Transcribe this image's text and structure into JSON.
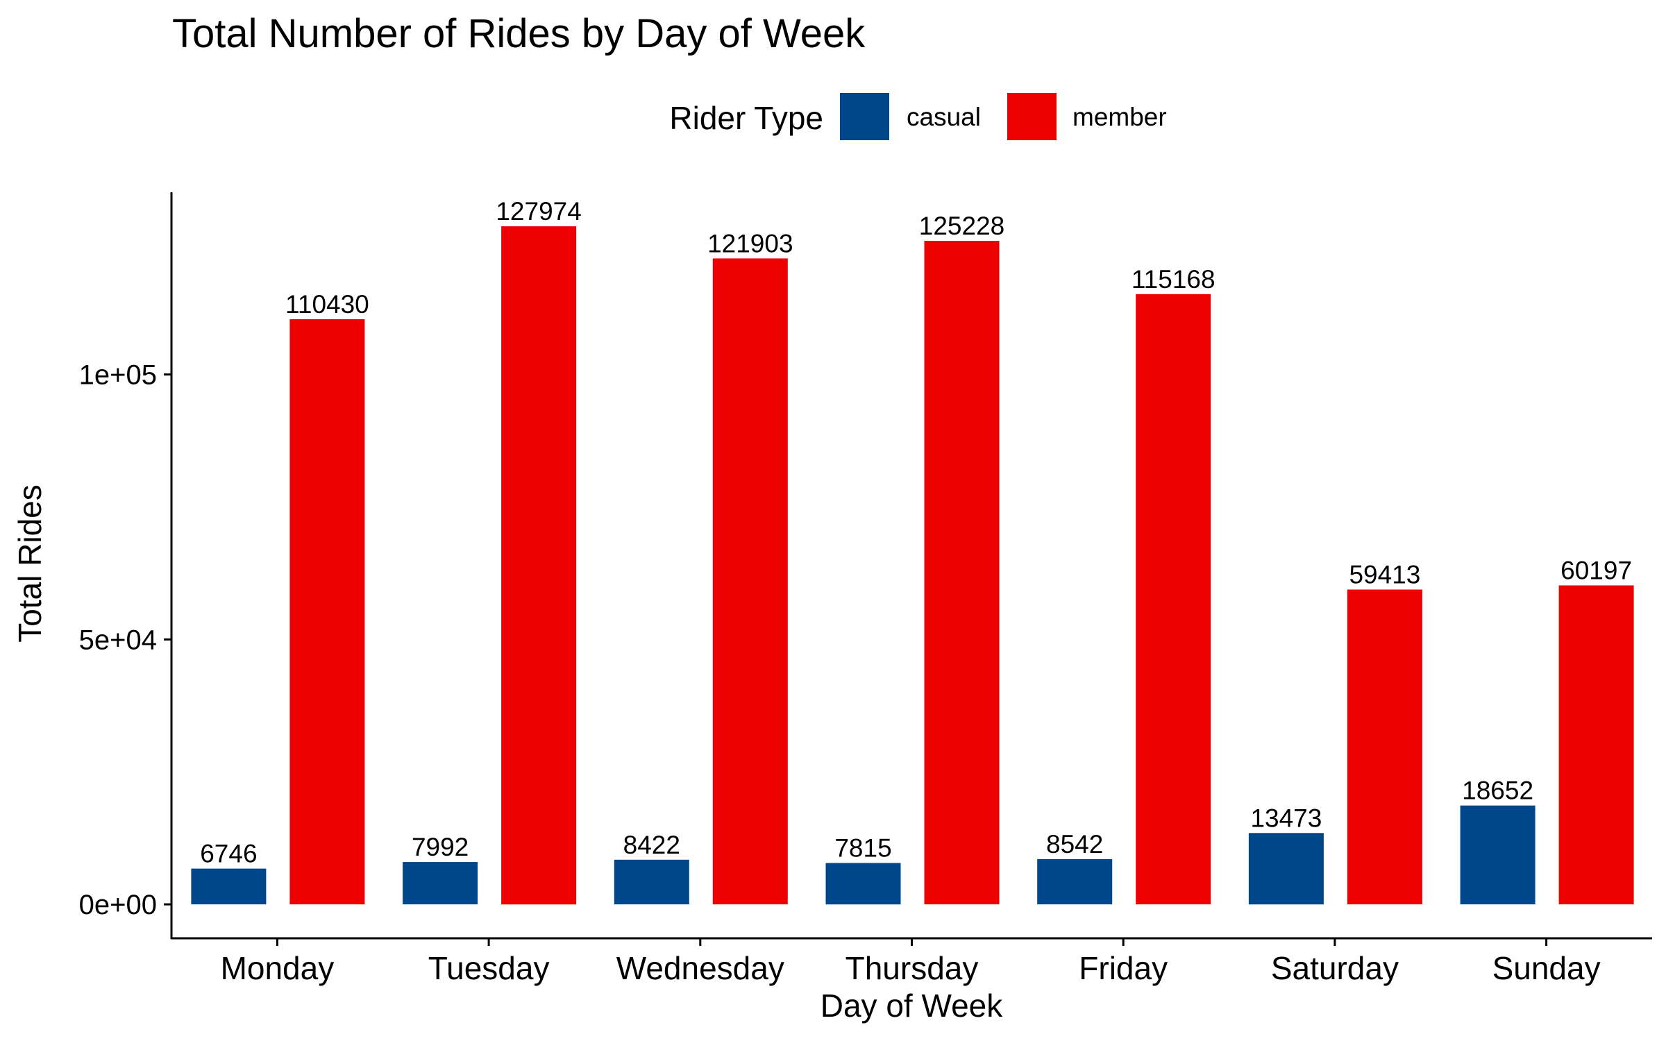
{
  "chart_data": {
    "type": "bar",
    "title": "Total Number of Rides by Day of Week",
    "xlabel": "Day of Week",
    "ylabel": "Total Rides",
    "categories": [
      "Monday",
      "Tuesday",
      "Wednesday",
      "Thursday",
      "Friday",
      "Saturday",
      "Sunday"
    ],
    "series": [
      {
        "name": "casual",
        "color": "#00468b",
        "values": [
          6746,
          7992,
          8422,
          7815,
          8542,
          13473,
          18652
        ],
        "labels": [
          "6746",
          "7992",
          "8422",
          "7815",
          "8542",
          "13473",
          "18652"
        ]
      },
      {
        "name": "member",
        "color": "#ed0000",
        "values": [
          110430,
          127974,
          121903,
          125228,
          115168,
          59413,
          60197
        ],
        "labels": [
          "110430",
          "127974",
          "121903",
          "125228",
          "115168",
          "59413",
          "60197"
        ]
      }
    ],
    "yticks": [
      0,
      50000,
      100000
    ],
    "ytick_labels": [
      "0e+00",
      "5e+04",
      "1e+05"
    ],
    "ylim": [
      -6400,
      134400
    ],
    "legend": {
      "title": "Rider Type",
      "position": "top"
    },
    "grid": false
  }
}
